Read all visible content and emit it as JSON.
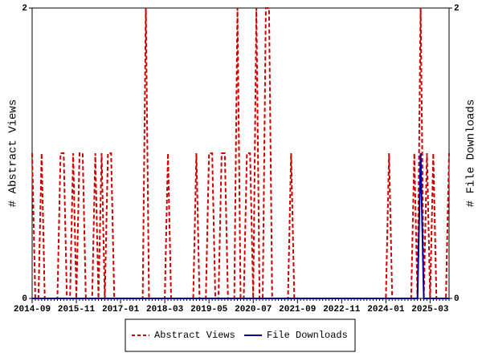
{
  "chart_data": {
    "type": "line",
    "y_label": "# Abstract Views",
    "y2_label": "# File Downloads",
    "categories": [
      "2014-09",
      null,
      null,
      null,
      null,
      null,
      null,
      null,
      null,
      null,
      null,
      null,
      null,
      null,
      "2015-11",
      null,
      null,
      null,
      null,
      null,
      null,
      null,
      null,
      null,
      null,
      null,
      null,
      null,
      "2017-01",
      null,
      null,
      null,
      null,
      null,
      null,
      null,
      null,
      null,
      null,
      null,
      null,
      null,
      "2018-03",
      null,
      null,
      null,
      null,
      null,
      null,
      null,
      null,
      null,
      null,
      null,
      null,
      null,
      "2019-05",
      null,
      null,
      null,
      null,
      null,
      null,
      null,
      null,
      null,
      null,
      null,
      null,
      null,
      "2020-07",
      null,
      null,
      null,
      null,
      null,
      null,
      null,
      null,
      null,
      null,
      null,
      null,
      null,
      "2021-09",
      null,
      null,
      null,
      null,
      null,
      null,
      null,
      null,
      null,
      null,
      null,
      null,
      null,
      "2022-11",
      null,
      null,
      null,
      null,
      null,
      null,
      null,
      null,
      null,
      null,
      null,
      null,
      null,
      "2024-01",
      null,
      null,
      null,
      null,
      null,
      null,
      null,
      null,
      null,
      null,
      null,
      null,
      null,
      "2025-03",
      null,
      null,
      null,
      null,
      null,
      null
    ],
    "series": [
      {
        "name": "Abstract Views",
        "color": "#cc0000",
        "dashed": true,
        "axis": "y",
        "values": [
          1,
          0,
          0,
          1,
          0,
          0,
          0,
          0,
          0,
          1,
          1,
          0,
          0,
          1,
          0,
          1,
          1,
          0,
          0,
          0,
          1,
          0,
          1,
          0,
          1,
          1,
          0,
          0,
          0,
          0,
          0,
          0,
          0,
          0,
          0,
          0,
          2,
          0,
          0,
          0,
          0,
          0,
          0,
          1,
          0,
          0,
          0,
          0,
          0,
          0,
          0,
          0,
          1,
          0,
          0,
          0,
          1,
          1,
          0,
          0,
          1,
          1,
          0,
          0,
          0,
          2,
          0,
          0,
          1,
          1,
          0,
          2,
          0,
          0,
          2,
          2,
          0,
          0,
          0,
          0,
          0,
          0,
          1,
          0,
          0,
          0,
          0,
          0,
          0,
          0,
          0,
          0,
          0,
          0,
          0,
          0,
          0,
          0,
          0,
          0,
          0,
          0,
          0,
          0,
          0,
          0,
          0,
          0,
          0,
          0,
          0,
          0,
          0,
          1,
          0,
          0,
          0,
          0,
          0,
          0,
          0,
          1,
          0,
          2,
          0,
          1,
          0,
          1,
          0,
          0,
          0,
          0,
          1
        ]
      },
      {
        "name": "File Downloads",
        "color": "#000099",
        "dashed": false,
        "axis": "y2",
        "values": [
          0,
          0,
          0,
          0,
          0,
          0,
          0,
          0,
          0,
          0,
          0,
          0,
          0,
          0,
          0,
          0,
          0,
          0,
          0,
          0,
          0,
          0,
          0,
          0,
          0,
          0,
          0,
          0,
          0,
          0,
          0,
          0,
          0,
          0,
          0,
          0,
          0,
          0,
          0,
          0,
          0,
          0,
          0,
          0,
          0,
          0,
          0,
          0,
          0,
          0,
          0,
          0,
          0,
          0,
          0,
          0,
          0,
          0,
          0,
          0,
          0,
          0,
          0,
          0,
          0,
          0,
          0,
          0,
          0,
          0,
          0,
          0,
          0,
          0,
          0,
          0,
          0,
          0,
          0,
          0,
          0,
          0,
          0,
          0,
          0,
          0,
          0,
          0,
          0,
          0,
          0,
          0,
          0,
          0,
          0,
          0,
          0,
          0,
          0,
          0,
          0,
          0,
          0,
          0,
          0,
          0,
          0,
          0,
          0,
          0,
          0,
          0,
          0,
          0,
          0,
          0,
          0,
          0,
          0,
          0,
          0,
          0,
          0,
          1,
          0,
          0,
          0,
          0,
          0,
          0,
          0,
          0,
          0
        ]
      }
    ],
    "ylim": [
      0,
      2
    ],
    "yticks": [
      0,
      2
    ],
    "y2lim": [
      0,
      2
    ],
    "y2ticks": [
      0,
      2
    ],
    "legend": "bottom"
  }
}
